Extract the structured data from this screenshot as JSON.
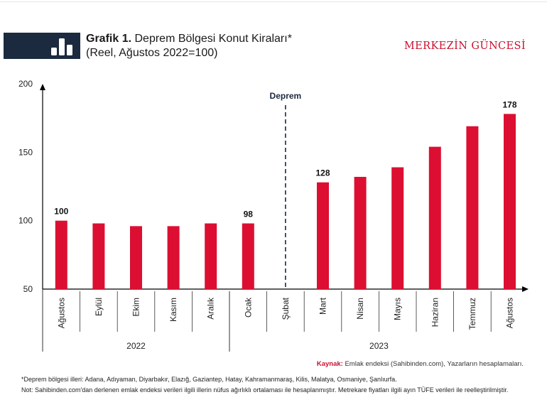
{
  "header": {
    "title_bold": "Grafik 1.",
    "title_rest": "Deprem Bölgesi Konut Kiraları*",
    "subtitle": "(Reel, Ağustos 2022=100)",
    "brand": "MERKEZİN GÜNCESİ",
    "icon": "bar-chart-icon"
  },
  "chart_data": {
    "type": "bar",
    "categories": [
      "Ağustos",
      "Eylül",
      "Ekim",
      "Kasım",
      "Aralık",
      "Ocak",
      "Şubat",
      "Mart",
      "Nisan",
      "Mayıs",
      "Haziran",
      "Temmuz",
      "Ağustos"
    ],
    "values": [
      100,
      98,
      96,
      96,
      98,
      98,
      null,
      128,
      132,
      139,
      154,
      169,
      178
    ],
    "data_labels": {
      "0": "100",
      "5": "98",
      "7": "128",
      "12": "178"
    },
    "year_groups": [
      {
        "label": "2022",
        "start": 0,
        "end": 4
      },
      {
        "label": "2023",
        "start": 5,
        "end": 12
      }
    ],
    "annotation": {
      "label": "Deprem",
      "position": 6
    },
    "ylim": [
      50,
      200
    ],
    "yticks": [
      50,
      100,
      150,
      200
    ],
    "bar_color": "#dc0f32",
    "grid": false
  },
  "footer": {
    "source_key": "Kaynak:",
    "source_text": "Emlak endeksi (Sahibinden.com), Yazarların hesaplamaları.",
    "footnote1": "*Deprem bölgesi illeri: Adana, Adıyaman, Diyarbakır, Elazığ, Gaziantep, Hatay, Kahramanmaraş, Kilis, Malatya, Osmaniye, Şanlıurfa.",
    "footnote2": "Not: Sahibinden.com'dan derlenen emlak endeksi verileri ilgili illerin nüfus ağırlıklı ortalaması ile hesaplanmıştır. Metrekare fiyatları ilgili ayın TÜFE verileri ile reelleştirilmiştir."
  }
}
